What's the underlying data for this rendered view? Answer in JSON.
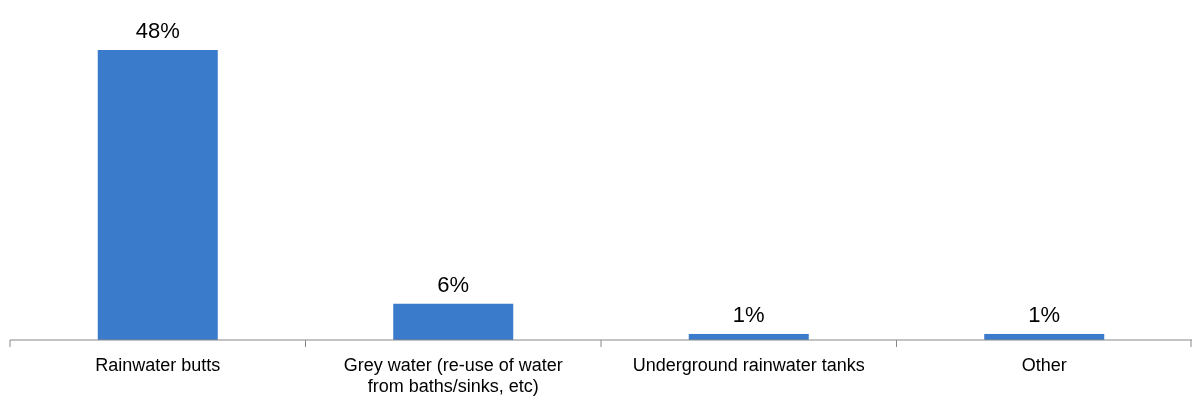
{
  "chart_data": {
    "type": "bar",
    "categories": [
      "Rainwater butts",
      "Grey water (re-use of water from baths/sinks, etc)",
      "Underground rainwater tanks",
      "Other"
    ],
    "values": [
      48,
      6,
      1,
      1
    ],
    "value_labels": [
      "48%",
      "6%",
      "1%",
      "1%"
    ],
    "color": "#3a7bcc"
  }
}
